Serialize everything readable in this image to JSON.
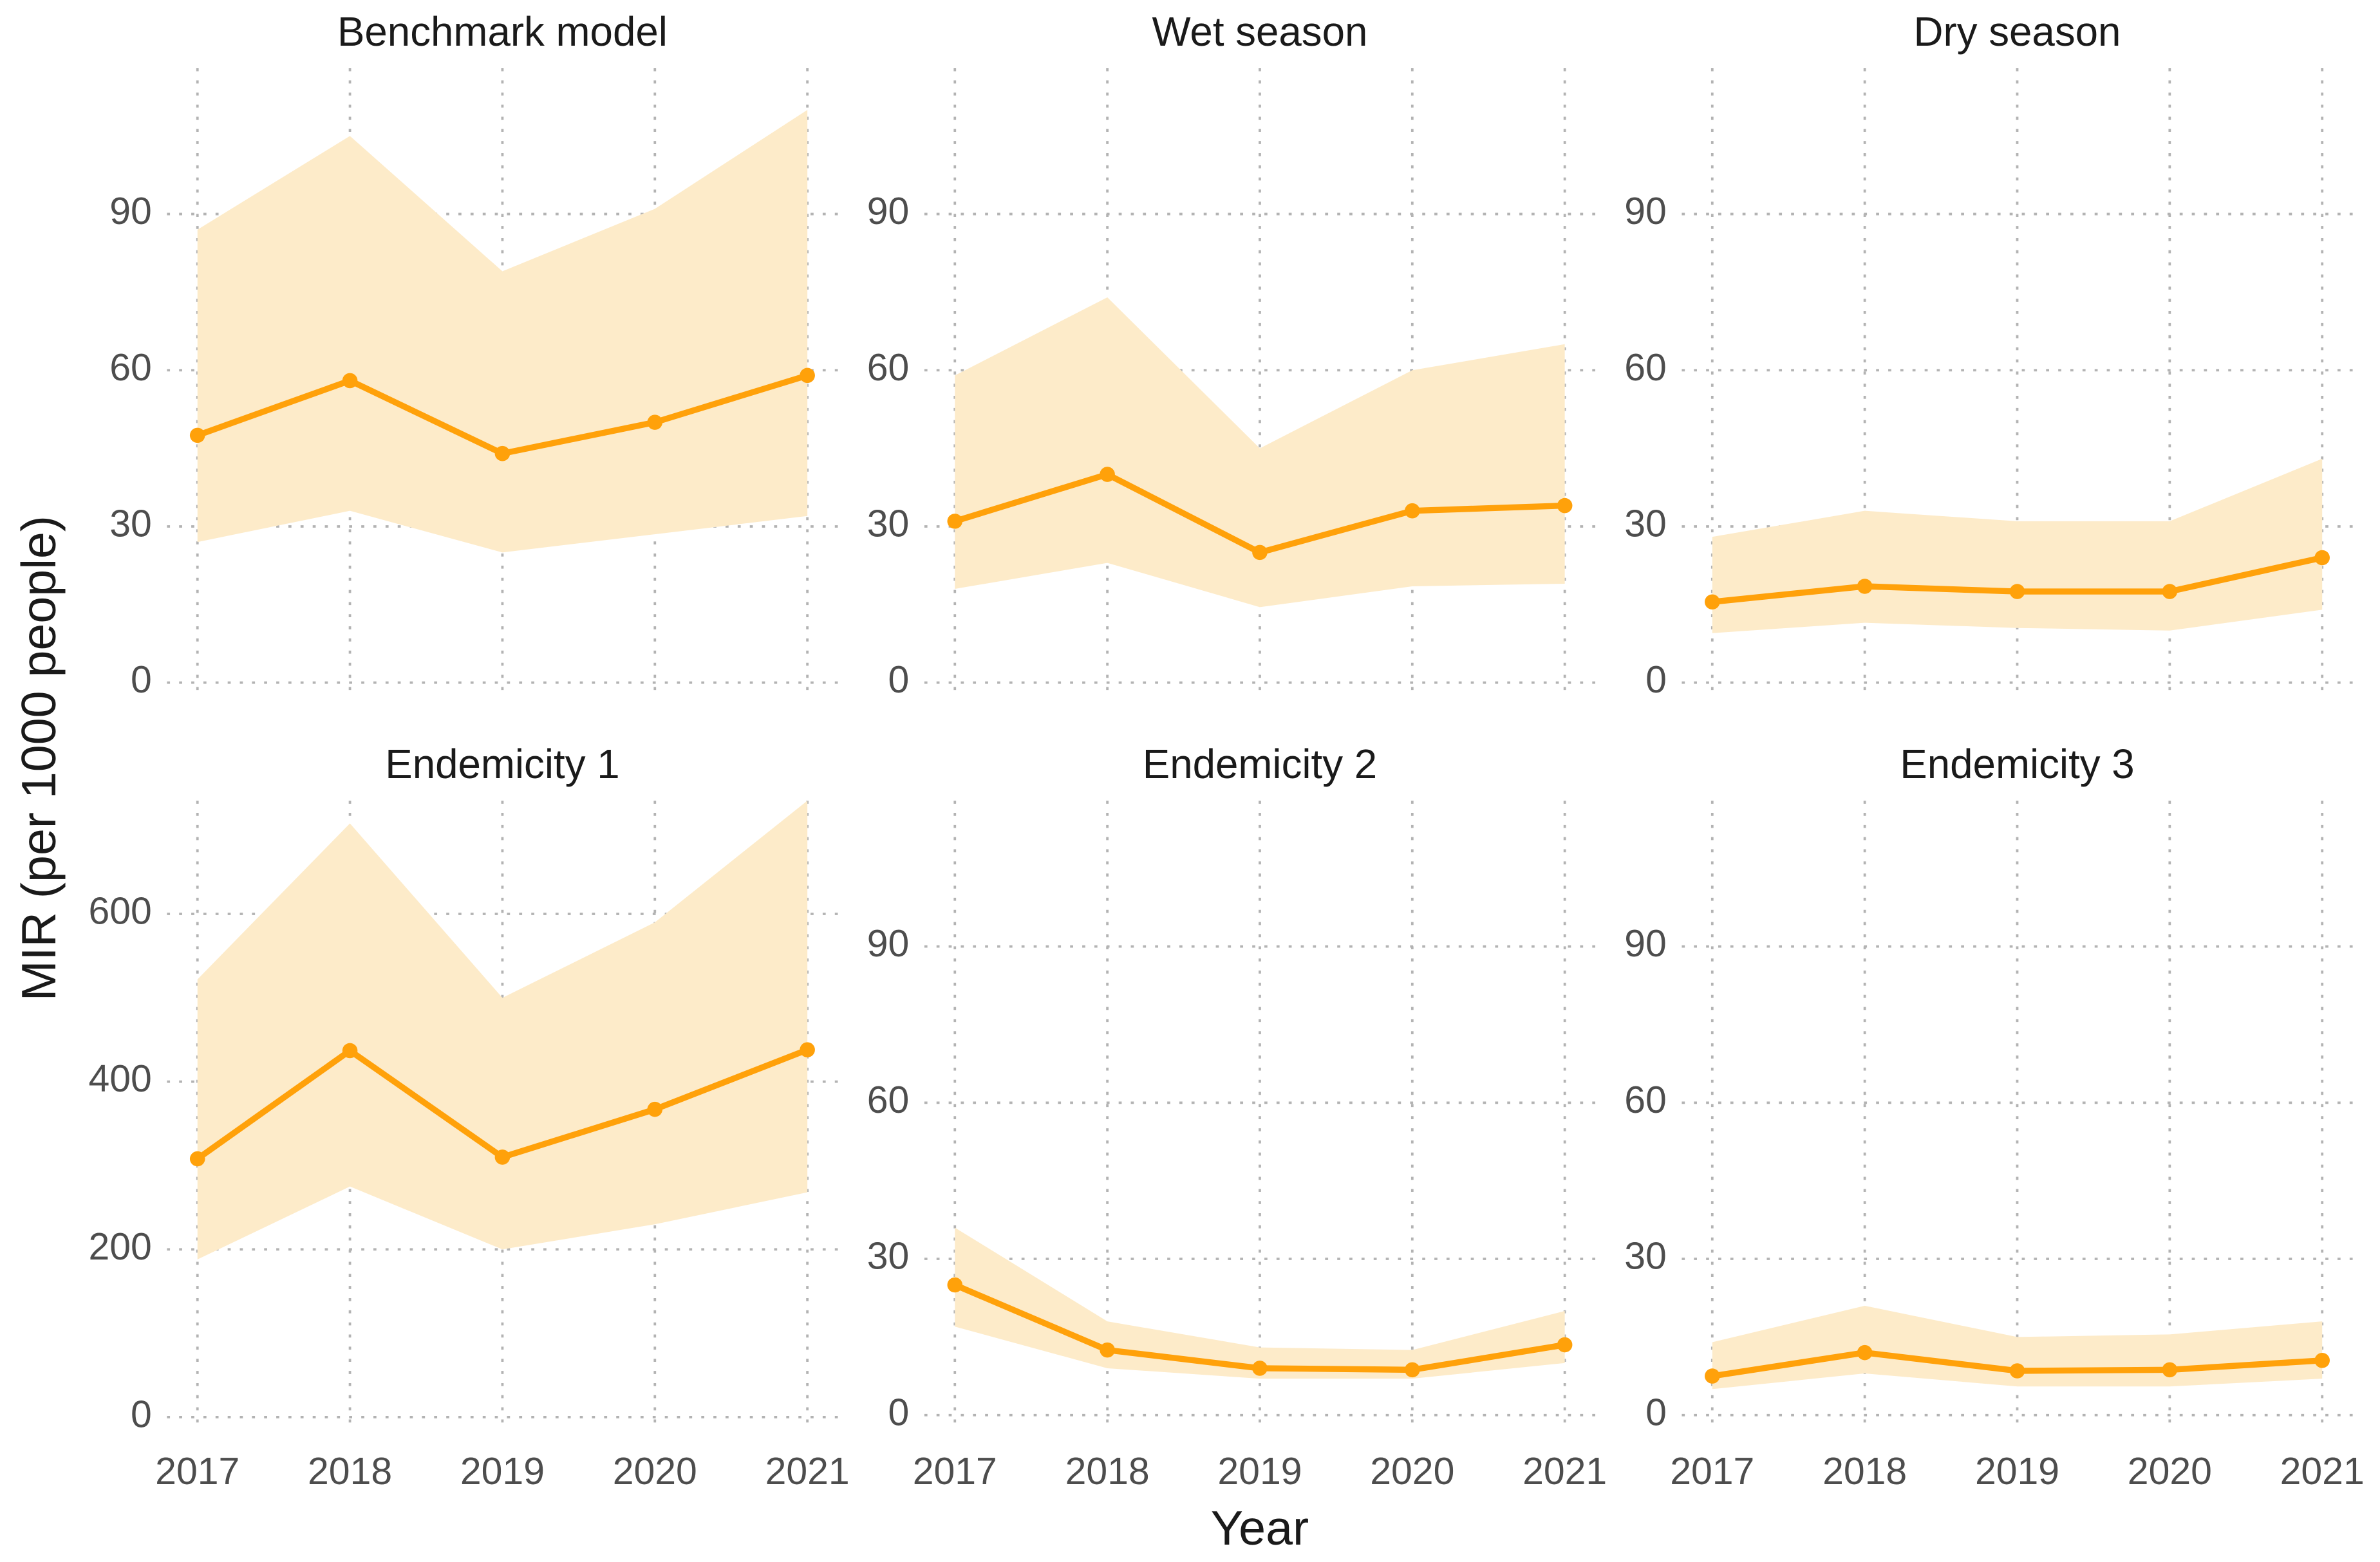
{
  "x_label": "Year",
  "y_label": "MIR (per 1000 people)",
  "chart_data": [
    {
      "type": "line",
      "title": "Benchmark model",
      "x": [
        2017,
        2018,
        2019,
        2020,
        2021
      ],
      "values": [
        47.5,
        58,
        44,
        50,
        59
      ],
      "lower": [
        27,
        33,
        25,
        28.5,
        32
      ],
      "upper": [
        87,
        105,
        79,
        91,
        110
      ],
      "color": "#ffa10a",
      "band_color": "#fdebc9",
      "xlim": [
        2016.8,
        2021.2
      ],
      "xticks": [
        2017,
        2018,
        2019,
        2020,
        2021
      ],
      "xtick_labels": false,
      "ylim": [
        -2,
        118
      ],
      "yticks": [
        0,
        30,
        60,
        90
      ],
      "grid": true
    },
    {
      "type": "line",
      "title": "Wet season",
      "x": [
        2017,
        2018,
        2019,
        2020,
        2021
      ],
      "values": [
        31,
        40,
        25,
        33,
        34
      ],
      "lower": [
        18,
        23,
        14.5,
        18.5,
        19
      ],
      "upper": [
        59,
        74,
        45,
        60,
        65
      ],
      "color": "#ffa10a",
      "band_color": "#fdebc9",
      "xlim": [
        2016.8,
        2021.2
      ],
      "xticks": [
        2017,
        2018,
        2019,
        2020,
        2021
      ],
      "xtick_labels": false,
      "ylim": [
        -2,
        118
      ],
      "yticks": [
        0,
        30,
        60,
        90
      ],
      "grid": true
    },
    {
      "type": "line",
      "title": "Dry season",
      "x": [
        2017,
        2018,
        2019,
        2020,
        2021
      ],
      "values": [
        15.5,
        18.5,
        17.5,
        17.5,
        24
      ],
      "lower": [
        9.5,
        11.5,
        10.5,
        10,
        14
      ],
      "upper": [
        28,
        33,
        31,
        31,
        43
      ],
      "color": "#ffa10a",
      "band_color": "#fdebc9",
      "xlim": [
        2016.8,
        2021.2
      ],
      "xticks": [
        2017,
        2018,
        2019,
        2020,
        2021
      ],
      "xtick_labels": false,
      "ylim": [
        -2,
        118
      ],
      "yticks": [
        0,
        30,
        60,
        90
      ],
      "grid": true
    },
    {
      "type": "line",
      "title": "Endemicity 1",
      "x": [
        2017,
        2018,
        2019,
        2020,
        2021
      ],
      "values": [
        308,
        437,
        310,
        367,
        438
      ],
      "lower": [
        188,
        275,
        200,
        230,
        268
      ],
      "upper": [
        522,
        708,
        500,
        590,
        735
      ],
      "color": "#ffa10a",
      "band_color": "#fdebc9",
      "xlim": [
        2016.8,
        2021.2
      ],
      "xticks": [
        2017,
        2018,
        2019,
        2020,
        2021
      ],
      "xtick_labels": true,
      "ylim": [
        -10,
        735
      ],
      "yticks": [
        0,
        200,
        400,
        600
      ],
      "grid": true
    },
    {
      "type": "line",
      "title": "Endemicity 2",
      "x": [
        2017,
        2018,
        2019,
        2020,
        2021
      ],
      "values": [
        25,
        12.5,
        9,
        8.7,
        13.5
      ],
      "lower": [
        17,
        9,
        7,
        7,
        10
      ],
      "upper": [
        36,
        18,
        13,
        12.5,
        20
      ],
      "color": "#ffa10a",
      "band_color": "#fdebc9",
      "xlim": [
        2016.8,
        2021.2
      ],
      "xticks": [
        2017,
        2018,
        2019,
        2020,
        2021
      ],
      "xtick_labels": true,
      "ylim": [
        -2,
        118
      ],
      "yticks": [
        0,
        30,
        60,
        90
      ],
      "grid": true
    },
    {
      "type": "line",
      "title": "Endemicity 3",
      "x": [
        2017,
        2018,
        2019,
        2020,
        2021
      ],
      "values": [
        7.5,
        12,
        8.5,
        8.7,
        10.5
      ],
      "lower": [
        5,
        8,
        5.5,
        5.5,
        7
      ],
      "upper": [
        14,
        21,
        15,
        15.5,
        18
      ],
      "color": "#ffa10a",
      "band_color": "#fdebc9",
      "xlim": [
        2016.8,
        2021.2
      ],
      "xticks": [
        2017,
        2018,
        2019,
        2020,
        2021
      ],
      "xtick_labels": true,
      "ylim": [
        -2,
        118
      ],
      "yticks": [
        0,
        30,
        60,
        90
      ],
      "grid": true
    }
  ]
}
